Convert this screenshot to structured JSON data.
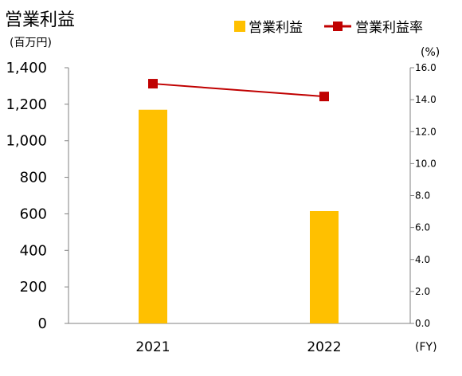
{
  "title": "営業利益",
  "left_unit": "(百万円)",
  "right_unit": "(%)",
  "x_unit": "(FY)",
  "colors": {
    "bar": "#FFC000",
    "line": "#C00000",
    "axis": "#808080"
  },
  "chart_data": {
    "type": "bar",
    "categories": [
      "2021",
      "2022"
    ],
    "series": [
      {
        "name": "営業利益",
        "type": "bar",
        "axis": "left",
        "values": [
          1170,
          615
        ]
      },
      {
        "name": "営業利益率",
        "type": "line",
        "axis": "right",
        "values": [
          15.0,
          14.2
        ]
      }
    ],
    "ylim": [
      0,
      1400
    ],
    "y2lim": [
      0,
      16
    ],
    "yticks": [
      "0",
      "200",
      "400",
      "600",
      "800",
      "1,000",
      "1,200",
      "1,400"
    ],
    "y2ticks": [
      "0.0",
      "2.0",
      "4.0",
      "6.0",
      "8.0",
      "10.0",
      "12.0",
      "14.0",
      "16.0"
    ],
    "legend": "top-right",
    "grid": false
  }
}
